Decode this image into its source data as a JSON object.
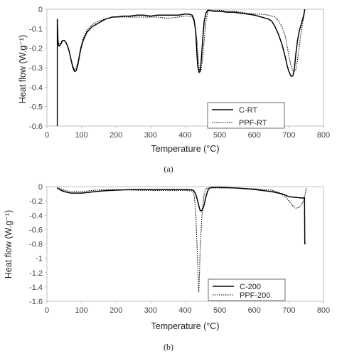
{
  "chart_data": [
    {
      "type": "line",
      "panel_label": "(a)",
      "xlabel": "Temperature (°C)",
      "ylabel": "Heat flow (W.g⁻¹)",
      "xlim": [
        0,
        800
      ],
      "ylim": [
        -0.6,
        0
      ],
      "xticks": [
        0,
        100,
        200,
        300,
        400,
        500,
        600,
        700,
        800
      ],
      "yticks": [
        0,
        -0.1,
        -0.2,
        -0.3,
        -0.4,
        -0.5,
        -0.6
      ],
      "ytick_labels": [
        "0",
        "-0.1",
        "-0.2",
        "-0.3",
        "-0.4",
        "-0.5",
        "-0.6"
      ],
      "grid": false,
      "legend_position": "bottom-right",
      "series": [
        {
          "name": "C-RT",
          "style": "solid",
          "color": "#000000",
          "x": [
            30,
            32,
            35,
            40,
            45,
            50,
            55,
            60,
            65,
            70,
            75,
            80,
            85,
            90,
            95,
            100,
            105,
            110,
            115,
            120,
            130,
            140,
            150,
            160,
            170,
            180,
            190,
            200,
            220,
            240,
            260,
            280,
            300,
            320,
            340,
            360,
            380,
            400,
            410,
            420,
            425,
            430,
            433,
            436,
            440,
            443,
            446,
            450,
            455,
            460,
            465,
            470,
            480,
            490,
            500,
            520,
            540,
            560,
            580,
            600,
            620,
            640,
            650,
            660,
            670,
            680,
            690,
            695,
            700,
            705,
            708,
            712,
            716,
            720,
            725,
            730,
            735,
            740,
            744,
            746
          ],
          "y": [
            -0.05,
            -0.17,
            -0.19,
            -0.18,
            -0.16,
            -0.16,
            -0.17,
            -0.19,
            -0.22,
            -0.26,
            -0.3,
            -0.32,
            -0.315,
            -0.28,
            -0.23,
            -0.19,
            -0.16,
            -0.14,
            -0.12,
            -0.11,
            -0.09,
            -0.08,
            -0.07,
            -0.06,
            -0.05,
            -0.045,
            -0.04,
            -0.04,
            -0.035,
            -0.035,
            -0.03,
            -0.03,
            -0.035,
            -0.03,
            -0.03,
            -0.03,
            -0.03,
            -0.025,
            -0.025,
            -0.03,
            -0.05,
            -0.11,
            -0.2,
            -0.29,
            -0.325,
            -0.32,
            -0.27,
            -0.17,
            -0.06,
            -0.02,
            -0.005,
            -0.005,
            -0.01,
            -0.01,
            -0.01,
            -0.015,
            -0.015,
            -0.02,
            -0.025,
            -0.03,
            -0.04,
            -0.05,
            -0.06,
            -0.09,
            -0.13,
            -0.18,
            -0.25,
            -0.29,
            -0.32,
            -0.34,
            -0.345,
            -0.34,
            -0.3,
            -0.23,
            -0.16,
            -0.11,
            -0.08,
            -0.05,
            -0.02,
            0
          ]
        },
        {
          "name": "PPF-RT",
          "style": "dotted",
          "color": "#000000",
          "x": [
            30,
            32,
            35,
            40,
            45,
            50,
            55,
            60,
            65,
            70,
            75,
            80,
            85,
            90,
            95,
            100,
            105,
            110,
            115,
            120,
            130,
            140,
            150,
            160,
            170,
            180,
            190,
            200,
            220,
            240,
            260,
            280,
            300,
            320,
            340,
            360,
            380,
            400,
            410,
            420,
            425,
            430,
            435,
            438,
            442,
            446,
            450,
            455,
            460,
            465,
            470,
            480,
            490,
            500,
            520,
            540,
            560,
            580,
            600,
            620,
            640,
            650,
            660,
            670,
            680,
            690,
            695,
            700,
            705,
            710,
            715,
            720,
            725,
            730,
            735,
            740,
            744,
            746
          ],
          "y": [
            -0.12,
            -0.16,
            -0.18,
            -0.17,
            -0.16,
            -0.16,
            -0.17,
            -0.19,
            -0.22,
            -0.26,
            -0.29,
            -0.31,
            -0.3,
            -0.27,
            -0.22,
            -0.18,
            -0.15,
            -0.13,
            -0.11,
            -0.1,
            -0.08,
            -0.07,
            -0.06,
            -0.055,
            -0.05,
            -0.045,
            -0.04,
            -0.04,
            -0.04,
            -0.04,
            -0.04,
            -0.04,
            -0.04,
            -0.04,
            -0.045,
            -0.045,
            -0.04,
            -0.035,
            -0.035,
            -0.04,
            -0.06,
            -0.1,
            -0.18,
            -0.27,
            -0.32,
            -0.31,
            -0.26,
            -0.16,
            -0.06,
            -0.015,
            -0.005,
            -0.005,
            -0.005,
            -0.005,
            -0.01,
            -0.01,
            -0.015,
            -0.02,
            -0.025,
            -0.025,
            -0.03,
            -0.035,
            -0.04,
            -0.06,
            -0.09,
            -0.14,
            -0.19,
            -0.24,
            -0.28,
            -0.31,
            -0.32,
            -0.31,
            -0.26,
            -0.19,
            -0.12,
            -0.07,
            -0.03,
            0
          ]
        }
      ]
    },
    {
      "type": "line",
      "panel_label": "(b)",
      "xlabel": "Temperature (°C)",
      "ylabel": "Heat flow (W.g⁻¹)",
      "xlim": [
        0,
        800
      ],
      "ylim": [
        -1.6,
        0
      ],
      "xticks": [
        0,
        100,
        200,
        300,
        400,
        500,
        600,
        700,
        800
      ],
      "yticks": [
        0,
        -0.2,
        -0.4,
        -0.6,
        -0.8,
        -1.0,
        -1.2,
        -1.4,
        -1.6
      ],
      "ytick_labels": [
        "0",
        "-0.2",
        "-0.4",
        "-0.6",
        "-0.8",
        "-1",
        "-1.2",
        "-1.4",
        "-1.6"
      ],
      "grid": false,
      "legend_position": "bottom-right",
      "series": [
        {
          "name": "C-200",
          "style": "solid",
          "color": "#000000",
          "x": [
            30,
            40,
            50,
            60,
            70,
            80,
            90,
            100,
            120,
            140,
            160,
            180,
            200,
            250,
            300,
            350,
            400,
            420,
            425,
            430,
            435,
            440,
            443,
            446,
            450,
            455,
            460,
            465,
            470,
            480,
            500,
            550,
            600,
            650,
            680,
            700,
            720,
            740,
            745,
            746,
            747
          ],
          "y": [
            -0.02,
            -0.05,
            -0.07,
            -0.08,
            -0.09,
            -0.09,
            -0.09,
            -0.09,
            -0.08,
            -0.07,
            -0.06,
            -0.055,
            -0.05,
            -0.04,
            -0.04,
            -0.04,
            -0.04,
            -0.045,
            -0.06,
            -0.1,
            -0.18,
            -0.28,
            -0.33,
            -0.34,
            -0.32,
            -0.25,
            -0.14,
            -0.06,
            -0.02,
            -0.01,
            -0.01,
            -0.02,
            -0.04,
            -0.07,
            -0.1,
            -0.14,
            -0.15,
            -0.16,
            -0.15,
            -0.8,
            -0.78
          ]
        },
        {
          "name": "PPF-200",
          "style": "dotted",
          "color": "#000000",
          "x": [
            30,
            40,
            50,
            60,
            70,
            80,
            90,
            100,
            120,
            140,
            160,
            180,
            200,
            250,
            300,
            350,
            400,
            420,
            425,
            430,
            434,
            437,
            439,
            441,
            443,
            445,
            447,
            450,
            455,
            460,
            465,
            470,
            480,
            500,
            550,
            600,
            650,
            670,
            690,
            700,
            710,
            720,
            730,
            740,
            745,
            748,
            750
          ],
          "y": [
            -0.01,
            -0.03,
            -0.05,
            -0.06,
            -0.07,
            -0.07,
            -0.07,
            -0.07,
            -0.06,
            -0.05,
            -0.045,
            -0.04,
            -0.04,
            -0.05,
            -0.055,
            -0.055,
            -0.055,
            -0.06,
            -0.1,
            -0.3,
            -0.8,
            -1.2,
            -1.47,
            -1.3,
            -0.9,
            -0.7,
            -0.5,
            -0.3,
            -0.1,
            -0.03,
            -0.02,
            -0.02,
            -0.02,
            -0.02,
            -0.02,
            -0.03,
            -0.05,
            -0.08,
            -0.14,
            -0.2,
            -0.26,
            -0.3,
            -0.29,
            -0.22,
            -0.15,
            -0.08,
            -0.02
          ]
        }
      ]
    }
  ]
}
